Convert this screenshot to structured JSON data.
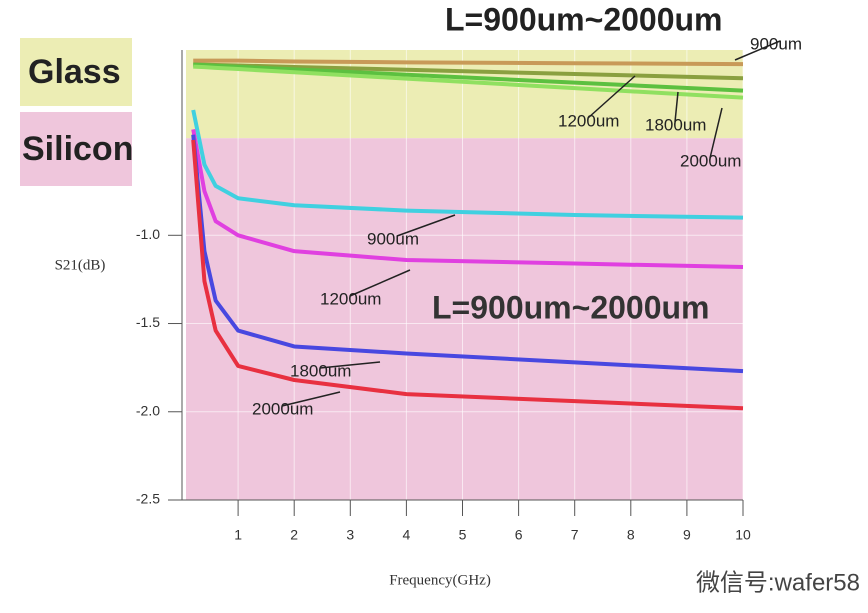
{
  "chart_data": {
    "type": "line",
    "title": "L=900um~2000um",
    "subtitle": "L=900um~2000um",
    "x_label": "Frequency(GHz)",
    "y_label": "S21(dB)",
    "watermark": "微信号:wafer58",
    "xlim": [
      0,
      10
    ],
    "xticks": [
      1,
      2,
      3,
      4,
      5,
      6,
      7,
      8,
      9,
      10
    ],
    "ylim": [
      -2.5,
      0.05
    ],
    "yticks": [
      {
        "value": -2.5,
        "label": "-2.5"
      },
      {
        "value": -2,
        "label": "-2.0"
      },
      {
        "value": -1.5,
        "label": "-1.5"
      },
      {
        "value": -1,
        "label": "-1.0"
      }
    ],
    "grid": true,
    "regions": [
      {
        "label": "Glass",
        "color": "#ecedb4",
        "range": [
          -0.45,
          0.05
        ]
      },
      {
        "label": "Silicon",
        "color": "#efc6dc",
        "range": [
          -2.5,
          -0.45
        ]
      }
    ],
    "x": [
      0.2,
      0.4,
      0.6,
      1,
      2,
      4,
      7,
      10
    ],
    "series": [
      {
        "name": "900um",
        "color": "#c89a58",
        "values": [
          -0.01,
          -0.01,
          -0.01,
          -0.01,
          -0.015,
          -0.02,
          -0.025,
          -0.03
        ]
      },
      {
        "name": "1200um",
        "color": "#8aa040",
        "values": [
          -0.032,
          -0.033,
          -0.035,
          -0.038,
          -0.046,
          -0.062,
          -0.086,
          -0.11
        ]
      },
      {
        "name": "1800um",
        "color": "#5cc040",
        "values": [
          -0.033,
          -0.036,
          -0.039,
          -0.045,
          -0.06,
          -0.09,
          -0.135,
          -0.18
        ]
      },
      {
        "name": "2000um",
        "color": "#90e060",
        "values": [
          -0.044,
          -0.047,
          -0.051,
          -0.058,
          -0.076,
          -0.112,
          -0.166,
          -0.22
        ]
      },
      {
        "name": "900um",
        "color": "#40d0e0",
        "values": [
          -0.29,
          -0.6,
          -0.72,
          -0.79,
          -0.83,
          -0.86,
          -0.885,
          -0.9
        ]
      },
      {
        "name": "1200um",
        "color": "#e040e0",
        "values": [
          -0.4,
          -0.75,
          -0.92,
          -1.0,
          -1.09,
          -1.14,
          -1.16,
          -1.18
        ]
      },
      {
        "name": "1800um",
        "color": "#4848e0",
        "values": [
          -0.43,
          -1.09,
          -1.37,
          -1.54,
          -1.63,
          -1.67,
          -1.72,
          -1.77
        ]
      },
      {
        "name": "2000um",
        "color": "#e83040",
        "values": [
          -0.46,
          -1.26,
          -1.54,
          -1.74,
          -1.82,
          -1.9,
          -1.94,
          -1.98
        ]
      }
    ]
  }
}
